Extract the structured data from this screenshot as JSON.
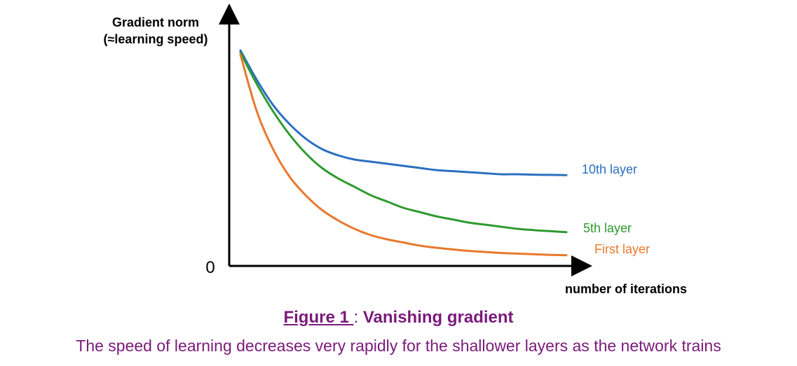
{
  "chart_data": {
    "type": "line",
    "ylabel_line1": "Gradient norm",
    "ylabel_line2": "(≈learning speed)",
    "xlabel": "number of iterations",
    "y_zero_label": "0",
    "x": [
      0,
      5,
      10,
      15,
      20,
      25,
      30,
      35,
      40,
      45,
      50,
      55,
      60,
      65,
      70,
      75,
      80,
      85,
      90,
      95,
      100
    ],
    "ylim": [
      0,
      100
    ],
    "xlim": [
      0,
      100
    ],
    "series": [
      {
        "name": "10th layer",
        "color": "#2a6fc0",
        "values": [
          100,
          86,
          74,
          65,
          58,
          53,
          50,
          48,
          47,
          46,
          45,
          44,
          43,
          42.5,
          42,
          41.5,
          41,
          41,
          40.8,
          40.7,
          40.6
        ]
      },
      {
        "name": "5th layer",
        "color": "#2f9a2f",
        "values": [
          99,
          84,
          71,
          60,
          51,
          44,
          39,
          35,
          31,
          28,
          25,
          23,
          21,
          19.5,
          18,
          17,
          16,
          15,
          14.4,
          13.9,
          13.4
        ]
      },
      {
        "name": "First layer",
        "color": "#e9782b",
        "values": [
          98,
          71,
          53,
          40,
          31,
          24,
          19,
          15,
          12,
          10,
          8.5,
          7,
          6,
          5.2,
          4.5,
          4,
          3.5,
          3.2,
          2.9,
          2.6,
          2.4
        ]
      }
    ],
    "grid": false,
    "legend": "inline labels at line ends"
  },
  "caption": {
    "figure_label": "Figure 1 ",
    "separator": ": ",
    "title": "Vanishing gradient",
    "description": "The speed of learning decreases very rapidly for the shallower layers as the network trains"
  }
}
